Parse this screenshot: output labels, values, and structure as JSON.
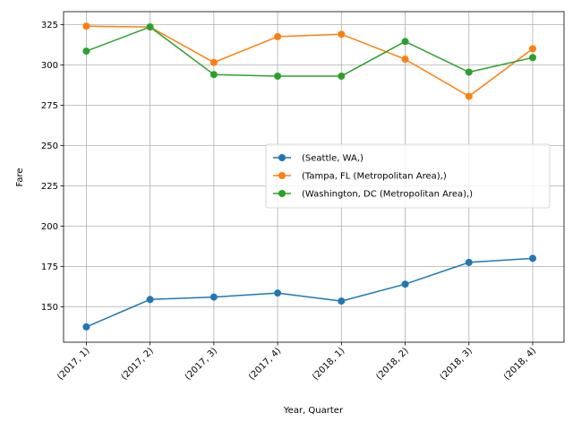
{
  "chart_data": {
    "type": "line",
    "title": "",
    "xlabel": "Year, Quarter",
    "ylabel": "Fare",
    "categories": [
      "(2017, 1)",
      "(2017, 2)",
      "(2017, 3)",
      "(2017, 4)",
      "(2018, 1)",
      "(2018, 2)",
      "(2018, 3)",
      "(2018, 4)"
    ],
    "ylim": [
      128,
      333
    ],
    "yticks": [
      150,
      175,
      200,
      225,
      250,
      275,
      300,
      325
    ],
    "grid": true,
    "legend_position": "center-right",
    "series": [
      {
        "name": "(Seattle, WA,)",
        "color": "#1f77b4",
        "values": [
          137.5,
          154.5,
          156,
          158.5,
          153.5,
          164,
          177.5,
          180
        ]
      },
      {
        "name": "(Tampa, FL (Metropolitan Area),)",
        "color": "#ff7f0e",
        "values": [
          324,
          323.5,
          301.5,
          317.5,
          319,
          303.5,
          280.5,
          310
        ]
      },
      {
        "name": "(Washington, DC (Metropolitan Area),)",
        "color": "#2ca02c",
        "values": [
          308.5,
          323.5,
          294,
          293,
          293,
          314.5,
          295.5,
          304.5
        ]
      }
    ]
  }
}
